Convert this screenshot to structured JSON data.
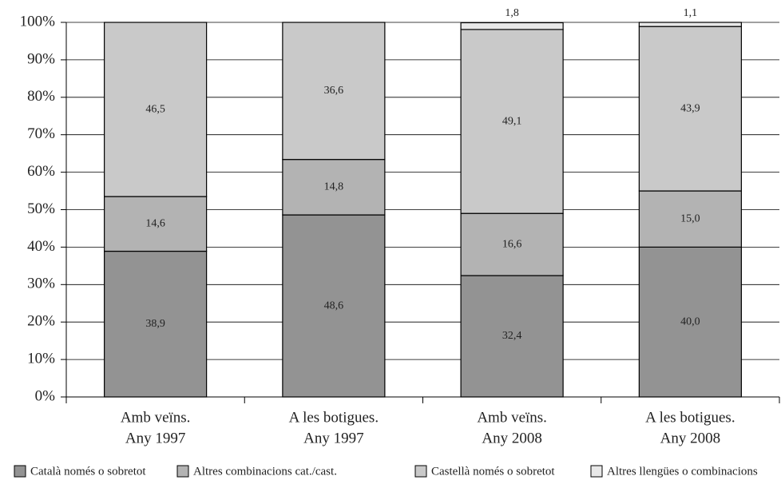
{
  "chart_data": {
    "type": "stacked_bar",
    "categories": [
      [
        "Amb veïns.",
        "Any 1997"
      ],
      [
        "A les botigues.",
        "Any 1997"
      ],
      [
        "Amb veïns.",
        "Any 2008"
      ],
      [
        "A les botigues.",
        "Any 2008"
      ]
    ],
    "series": [
      {
        "name": "Català només o sobretot",
        "color": "#939393",
        "values": [
          38.9,
          48.6,
          32.4,
          40.0
        ],
        "value_labels": [
          "38,9",
          "48,6",
          "32,4",
          "40,0"
        ]
      },
      {
        "name": "Altres combinacions cat./cast.",
        "color": "#b3b3b3",
        "values": [
          14.6,
          14.8,
          16.6,
          15.0
        ],
        "value_labels": [
          "14,6",
          "14,8",
          "16,6",
          "15,0"
        ]
      },
      {
        "name": "Castellà només o sobretot",
        "color": "#c9c9c9",
        "values": [
          46.5,
          36.6,
          49.1,
          43.9
        ],
        "value_labels": [
          "46,5",
          "36,6",
          "49,1",
          "43,9"
        ]
      },
      {
        "name": "Altres llengües o combinacions",
        "color": "#e8e8e8",
        "values": [
          null,
          null,
          1.8,
          1.1
        ],
        "value_labels": [
          null,
          null,
          "1,8",
          "1,1"
        ]
      }
    ],
    "ylim": [
      0,
      100
    ],
    "yticks": [
      {
        "value": 0,
        "label": "0%"
      },
      {
        "value": 10,
        "label": "10%"
      },
      {
        "value": 20,
        "label": "20%"
      },
      {
        "value": 30,
        "label": "30%"
      },
      {
        "value": 40,
        "label": "40%"
      },
      {
        "value": 50,
        "label": "50%"
      },
      {
        "value": 60,
        "label": "60%"
      },
      {
        "value": 70,
        "label": "70%"
      },
      {
        "value": 80,
        "label": "80%"
      },
      {
        "value": 90,
        "label": "90%"
      },
      {
        "value": 100,
        "label": "100%"
      }
    ],
    "grid": true
  }
}
